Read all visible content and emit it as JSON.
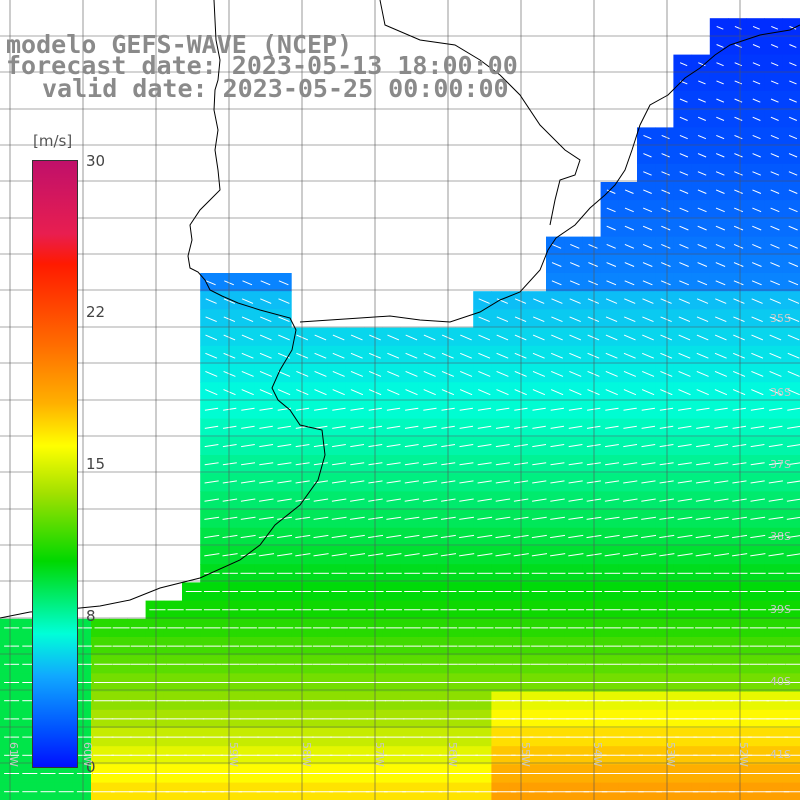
{
  "title": {
    "line1": "modelo GEFS-WAVE (NCEP)",
    "line2": "forecast date: 2023-05-13 18:00:00",
    "line3": "valid date: 2023-05-25 00:00:00"
  },
  "colorbar": {
    "unit": "[m/s]",
    "ticks": [
      "30",
      "22",
      "15",
      "8",
      "0"
    ],
    "tick_values": [
      30,
      22,
      15,
      8,
      0
    ],
    "range": [
      0,
      30
    ]
  },
  "lat_labels": [
    "35S",
    "36S",
    "37S",
    "38S",
    "39S",
    "40S",
    "41S"
  ],
  "lon_labels": [
    "61W",
    "60W",
    "59W",
    "58W",
    "57W",
    "56W",
    "55W",
    "54W",
    "53W",
    "52W",
    "51W"
  ],
  "colors": {
    "grid": "#555555",
    "coast": "#000000",
    "arrow": "#ffffff",
    "title": "#8a8a8a"
  }
}
